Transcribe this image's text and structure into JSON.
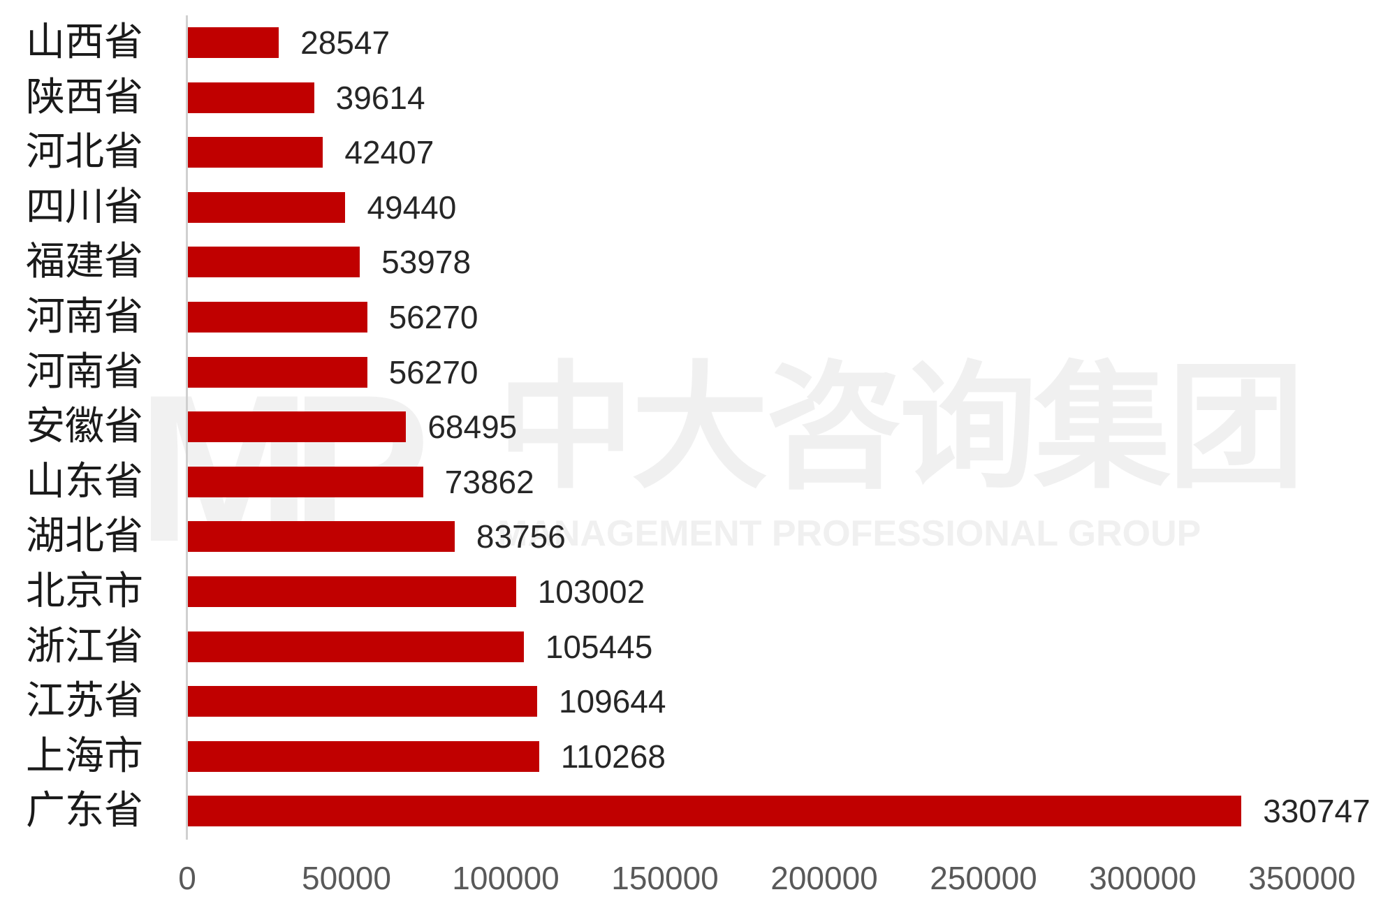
{
  "chart_data": {
    "type": "bar",
    "orientation": "horizontal",
    "title": "",
    "xlabel": "",
    "ylabel": "",
    "categories": [
      "山西省",
      "陕西省",
      "河北省",
      "四川省",
      "福建省",
      "河南省",
      "河南省",
      "安徽省",
      "山东省",
      "湖北省",
      "北京市",
      "浙江省",
      "江苏省",
      "上海市",
      "广东省"
    ],
    "values": [
      28547,
      39614,
      42407,
      49440,
      53978,
      56270,
      56270,
      68495,
      73862,
      83756,
      103002,
      105445,
      109644,
      110268,
      330747
    ],
    "xlim": [
      0,
      350000
    ],
    "x_ticks": [
      0,
      50000,
      100000,
      150000,
      200000,
      250000,
      300000,
      350000
    ],
    "x_tick_labels": [
      "0",
      "50000",
      "100000",
      "150000",
      "200000",
      "250000",
      "300000",
      "350000"
    ],
    "data_labels": true,
    "grid": false,
    "legend": null,
    "bar_color": "#C00000"
  },
  "watermark": {
    "logo": "MP",
    "cn_text": "中大咨询集团",
    "en_text": "MANAGEMENT PROFESSIONAL GROUP"
  }
}
